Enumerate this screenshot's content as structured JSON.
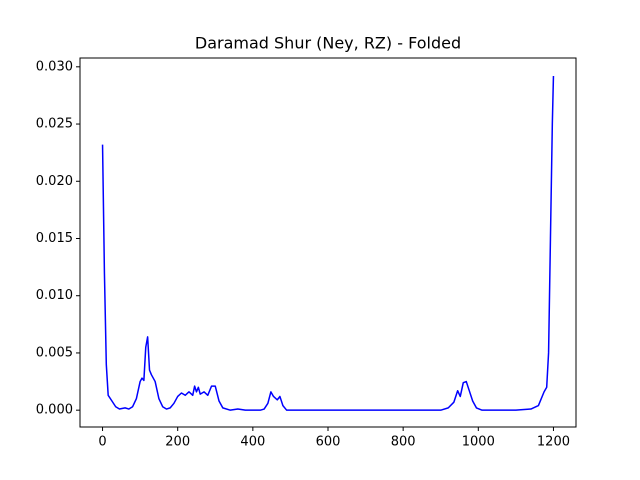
{
  "chart_data": {
    "type": "line",
    "title": "Daramad Shur (Ney, RZ) - Folded",
    "series": [
      {
        "color": "#0000ff",
        "x": [
          0,
          5,
          10,
          15,
          25,
          35,
          45,
          60,
          70,
          80,
          90,
          100,
          105,
          110,
          115,
          120,
          125,
          130,
          140,
          150,
          160,
          170,
          180,
          190,
          200,
          210,
          220,
          230,
          240,
          245,
          250,
          255,
          260,
          270,
          280,
          290,
          300,
          310,
          320,
          340,
          360,
          380,
          420,
          430,
          440,
          448,
          455,
          465,
          472,
          480,
          490,
          600,
          700,
          800,
          900,
          920,
          935,
          945,
          952,
          960,
          968,
          975,
          985,
          995,
          1010,
          1100,
          1140,
          1160,
          1175,
          1182,
          1187,
          1192,
          1197,
          1200
        ],
        "values": [
          0.0232,
          0.012,
          0.004,
          0.0013,
          0.0008,
          0.0003,
          0.0001,
          0.0002,
          0.0001,
          0.0003,
          0.001,
          0.0025,
          0.0028,
          0.0026,
          0.0055,
          0.0064,
          0.0035,
          0.0031,
          0.0025,
          0.001,
          0.0003,
          0.0001,
          0.0002,
          0.0006,
          0.0012,
          0.0015,
          0.0013,
          0.0016,
          0.0013,
          0.0021,
          0.0016,
          0.002,
          0.0014,
          0.0016,
          0.0013,
          0.0021,
          0.0021,
          0.0008,
          0.0002,
          0.0,
          0.0001,
          0.0,
          0.0,
          0.0001,
          0.0006,
          0.0016,
          0.0012,
          0.0009,
          0.0012,
          0.0004,
          0.0,
          0.0,
          0.0,
          0.0,
          0.0,
          0.0002,
          0.0007,
          0.0017,
          0.0012,
          0.0024,
          0.0025,
          0.0018,
          0.0008,
          0.0002,
          0.0,
          0.0,
          0.0001,
          0.0004,
          0.0016,
          0.002,
          0.005,
          0.015,
          0.025,
          0.0292
        ]
      }
    ],
    "xlim": [
      -60,
      1260
    ],
    "xticks": [
      0,
      200,
      400,
      600,
      800,
      1000,
      1200
    ],
    "ylim": [
      -0.00147,
      0.03077
    ],
    "yticks": [
      {
        "value": 0,
        "label": "0.000"
      },
      {
        "value": 0.005,
        "label": "0.005"
      },
      {
        "value": 0.01,
        "label": "0.010"
      },
      {
        "value": 0.015,
        "label": "0.015"
      },
      {
        "value": 0.02,
        "label": "0.020"
      },
      {
        "value": 0.025,
        "label": "0.025"
      },
      {
        "value": 0.03,
        "label": "0.030"
      }
    ]
  }
}
